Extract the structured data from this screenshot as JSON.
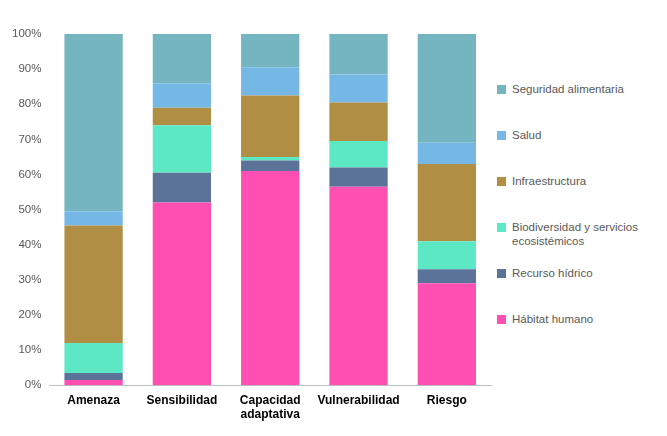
{
  "chart_data": {
    "type": "bar",
    "stacked": true,
    "legend": "right",
    "grid": false,
    "categories": [
      "Amenaza",
      "Sensibilidad",
      "Capacidad adaptativa",
      "Vulnerabilidad",
      "Riesgo"
    ],
    "series": [
      {
        "name": "Hábitat humano",
        "color": "#ff4fb3",
        "values": [
          1.5,
          52,
          61,
          56.5,
          29
        ]
      },
      {
        "name": "Recurso hídrico",
        "color": "#5b7399",
        "values": [
          2,
          8.5,
          3,
          5.5,
          4
        ]
      },
      {
        "name": "Biodiversidad y servicios ecosistémicos",
        "color": "#5ce8c4",
        "values": [
          8.5,
          13.5,
          1,
          7.5,
          8
        ]
      },
      {
        "name": "Infraestructura",
        "color": "#b08f45",
        "values": [
          33.5,
          5,
          17.5,
          11,
          22
        ]
      },
      {
        "name": "Salud",
        "color": "#75b8e6",
        "values": [
          4,
          7,
          8,
          8,
          6
        ]
      },
      {
        "name": "Seguridad alimentaria",
        "color": "#74b5bf",
        "values": [
          50.5,
          14,
          9.5,
          11.5,
          31
        ]
      }
    ],
    "ylim": [
      0,
      100
    ],
    "yticks": [
      {
        "value": 0,
        "label": "0%"
      },
      {
        "value": 10,
        "label": "10%"
      },
      {
        "value": 20,
        "label": "20%"
      },
      {
        "value": 30,
        "label": "30%"
      },
      {
        "value": 40,
        "label": "40%"
      },
      {
        "value": 50,
        "label": "50%"
      },
      {
        "value": 60,
        "label": "60%"
      },
      {
        "value": 70,
        "label": "70%"
      },
      {
        "value": 80,
        "label": "80%"
      },
      {
        "value": 90,
        "label": "90%"
      },
      {
        "value": 100,
        "label": "100%"
      }
    ]
  }
}
